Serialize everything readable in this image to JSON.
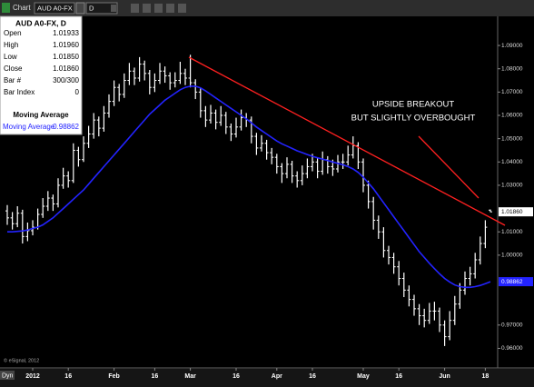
{
  "toolbar": {
    "tab": "Chart",
    "symbol": "AUD A0-FX",
    "interval": "D"
  },
  "chart_data": {
    "type": "ohlc",
    "title": "AUD A0-FX, D",
    "bar_color": "#ffffff",
    "ohlc": [
      [
        1.019,
        1.0215,
        1.013,
        1.016
      ],
      [
        1.016,
        1.0185,
        1.011,
        1.0135
      ],
      [
        1.0135,
        1.021,
        1.012,
        1.018
      ],
      [
        1.018,
        1.0195,
        1.005,
        1.008
      ],
      [
        1.008,
        1.014,
        1.006,
        1.0105
      ],
      [
        1.0105,
        1.015,
        1.0085,
        1.012
      ],
      [
        1.012,
        1.02,
        1.011,
        1.0175
      ],
      [
        1.0175,
        1.0245,
        1.016,
        1.021
      ],
      [
        1.021,
        1.0275,
        1.019,
        1.0245
      ],
      [
        1.0245,
        1.026,
        1.019,
        1.022
      ],
      [
        1.022,
        1.033,
        1.0205,
        1.03
      ],
      [
        1.03,
        1.0375,
        1.0285,
        1.034
      ],
      [
        1.034,
        1.036,
        1.029,
        1.032
      ],
      [
        1.032,
        1.048,
        1.031,
        1.045
      ],
      [
        1.045,
        1.0465,
        1.038,
        1.041
      ],
      [
        1.041,
        1.051,
        1.04,
        1.048
      ],
      [
        1.048,
        1.0555,
        1.046,
        1.052
      ],
      [
        1.052,
        1.061,
        1.05,
        1.058
      ],
      [
        1.058,
        1.0595,
        1.051,
        1.0545
      ],
      [
        1.0545,
        1.064,
        1.053,
        1.061
      ],
      [
        1.061,
        1.069,
        1.059,
        1.066
      ],
      [
        1.066,
        1.075,
        1.064,
        1.072
      ],
      [
        1.072,
        1.0735,
        1.066,
        1.069
      ],
      [
        1.069,
        1.078,
        1.0675,
        1.075
      ],
      [
        1.075,
        1.0825,
        1.073,
        1.079
      ],
      [
        1.079,
        1.0805,
        1.073,
        1.076
      ],
      [
        1.076,
        1.085,
        1.0745,
        1.082
      ],
      [
        1.082,
        1.0835,
        1.075,
        1.078
      ],
      [
        1.078,
        1.0795,
        1.069,
        1.072
      ],
      [
        1.072,
        1.078,
        1.07,
        1.075
      ],
      [
        1.075,
        1.0825,
        1.0735,
        1.079
      ],
      [
        1.079,
        1.081,
        1.074,
        1.077
      ],
      [
        1.077,
        1.0785,
        1.071,
        1.074
      ],
      [
        1.074,
        1.0785,
        1.072,
        1.075
      ],
      [
        1.075,
        1.083,
        1.0735,
        1.078
      ],
      [
        1.078,
        1.08,
        1.073,
        1.076
      ],
      [
        1.076,
        1.086,
        1.072,
        1.074
      ],
      [
        1.074,
        1.0755,
        1.067,
        1.07
      ],
      [
        1.07,
        1.0715,
        1.059,
        1.062
      ],
      [
        1.062,
        1.064,
        1.055,
        1.058
      ],
      [
        1.058,
        1.0645,
        1.0565,
        1.061
      ],
      [
        1.061,
        1.0625,
        1.054,
        1.057
      ],
      [
        1.057,
        1.064,
        1.0555,
        1.06
      ],
      [
        1.06,
        1.0615,
        1.052,
        1.055
      ],
      [
        1.055,
        1.0565,
        1.049,
        1.052
      ],
      [
        1.052,
        1.059,
        1.0505,
        1.055
      ],
      [
        1.055,
        1.0625,
        1.0535,
        1.059
      ],
      [
        1.059,
        1.061,
        1.055,
        1.058
      ],
      [
        1.058,
        1.0595,
        1.048,
        1.051
      ],
      [
        1.051,
        1.0525,
        1.043,
        1.046
      ],
      [
        1.046,
        1.0515,
        1.0445,
        1.048
      ],
      [
        1.048,
        1.0495,
        1.041,
        1.044
      ],
      [
        1.044,
        1.046,
        1.039,
        1.042
      ],
      [
        1.042,
        1.0435,
        1.035,
        1.038
      ],
      [
        1.038,
        1.0395,
        1.031,
        1.035
      ],
      [
        1.035,
        1.042,
        1.033,
        1.039
      ],
      [
        1.039,
        1.0405,
        1.031,
        1.034
      ],
      [
        1.034,
        1.036,
        1.029,
        1.032
      ],
      [
        1.032,
        1.0385,
        1.03,
        1.035
      ],
      [
        1.035,
        1.0415,
        1.033,
        1.038
      ],
      [
        1.038,
        1.0435,
        1.036,
        1.04
      ],
      [
        1.04,
        1.0415,
        1.033,
        1.036
      ],
      [
        1.036,
        1.0445,
        1.0345,
        1.041
      ],
      [
        1.041,
        1.0425,
        1.035,
        1.038
      ],
      [
        1.038,
        1.041,
        1.034,
        1.037
      ],
      [
        1.037,
        1.043,
        1.0355,
        1.04
      ],
      [
        1.04,
        1.0435,
        1.037,
        1.04
      ],
      [
        1.04,
        1.047,
        1.0385,
        1.043
      ],
      [
        1.043,
        1.051,
        1.0415,
        1.047
      ],
      [
        1.047,
        1.0485,
        1.037,
        1.04
      ],
      [
        1.04,
        1.0415,
        1.027,
        1.03
      ],
      [
        1.03,
        1.032,
        1.02,
        1.023
      ],
      [
        1.023,
        1.025,
        1.011,
        1.015
      ],
      [
        1.015,
        1.017,
        1.007,
        1.01
      ],
      [
        1.01,
        1.012,
        0.999,
        1.002
      ],
      [
        1.002,
        1.004,
        0.996,
        0.999
      ],
      [
        0.999,
        1.001,
        0.992,
        0.995
      ],
      [
        0.995,
        0.9975,
        0.987,
        0.99
      ],
      [
        0.99,
        0.9925,
        0.982,
        0.985
      ],
      [
        0.985,
        0.987,
        0.978,
        0.981
      ],
      [
        0.981,
        0.983,
        0.974,
        0.977
      ],
      [
        0.977,
        0.979,
        0.97,
        0.974
      ],
      [
        0.974,
        0.977,
        0.969,
        0.972
      ],
      [
        0.972,
        0.9795,
        0.9705,
        0.976
      ],
      [
        0.976,
        0.98,
        0.972,
        0.976
      ],
      [
        0.976,
        0.9775,
        0.967,
        0.97
      ],
      [
        0.97,
        0.972,
        0.961,
        0.965
      ],
      [
        0.965,
        0.976,
        0.9635,
        0.972
      ],
      [
        0.972,
        0.9825,
        0.97,
        0.979
      ],
      [
        0.979,
        0.988,
        0.977,
        0.985
      ],
      [
        0.985,
        0.993,
        0.983,
        0.99
      ],
      [
        0.99,
        0.995,
        0.987,
        0.992
      ],
      [
        0.992,
        1.001,
        0.99,
        0.998
      ],
      [
        0.998,
        1.008,
        0.996,
        1.005
      ],
      [
        1.005,
        1.015,
        1.003,
        1.012
      ],
      [
        1.01933,
        1.0196,
        1.0185,
        1.0186
      ]
    ],
    "series": [
      {
        "name": "Moving Average",
        "color": "#2323ff",
        "values": [
          1.01,
          1.01,
          1.0102,
          1.0104,
          1.0108,
          1.0115,
          1.012,
          1.013,
          1.0145,
          1.016,
          1.018,
          1.02,
          1.022,
          1.024,
          1.026,
          1.028,
          1.0305,
          1.033,
          1.0355,
          1.038,
          1.0405,
          1.043,
          1.0455,
          1.048,
          1.0505,
          1.053,
          1.0555,
          1.058,
          1.0605,
          1.0625,
          1.0645,
          1.0665,
          1.068,
          1.0695,
          1.071,
          1.072,
          1.0725,
          1.0725,
          1.0718,
          1.0705,
          1.069,
          1.0675,
          1.066,
          1.0645,
          1.063,
          1.0615,
          1.06,
          1.0585,
          1.0568,
          1.055,
          1.0535,
          1.052,
          1.0505,
          1.049,
          1.0478,
          1.0468,
          1.0458,
          1.0448,
          1.044,
          1.0432,
          1.0424,
          1.0418,
          1.0412,
          1.0406,
          1.04,
          1.0394,
          1.0388,
          1.038,
          1.037,
          1.0355,
          1.0335,
          1.031,
          1.0285,
          1.0255,
          1.0225,
          1.0195,
          1.0165,
          1.0135,
          1.0105,
          1.0075,
          1.0045,
          1.0015,
          0.999,
          0.9965,
          0.9942,
          0.992,
          0.99,
          0.9885,
          0.9872,
          0.9865,
          0.9862,
          0.9862,
          0.9865,
          0.987,
          0.9878,
          0.98862
        ]
      }
    ],
    "xlim": [
      -1.43,
      96.43
    ],
    "xticks": [
      {
        "value": 5,
        "label": "2012"
      },
      {
        "value": 12,
        "label": "16"
      },
      {
        "value": 21,
        "label": "Feb"
      },
      {
        "value": 29,
        "label": "16"
      },
      {
        "value": 36,
        "label": "Mar"
      },
      {
        "value": 45,
        "label": "16"
      },
      {
        "value": 53,
        "label": "Apr"
      },
      {
        "value": 60,
        "label": "16"
      },
      {
        "value": 70,
        "label": "May"
      },
      {
        "value": 77,
        "label": "16"
      },
      {
        "value": 86,
        "label": "Jun"
      },
      {
        "value": 94,
        "label": "18"
      }
    ],
    "ylim": [
      0.9516,
      1.1025
    ],
    "yticks": [
      {
        "value": 1.09,
        "label": "1.09000"
      },
      {
        "value": 1.08,
        "label": "1.08000"
      },
      {
        "value": 1.07,
        "label": "1.07000"
      },
      {
        "value": 1.06,
        "label": "1.06000"
      },
      {
        "value": 1.05,
        "label": "1.05000"
      },
      {
        "value": 1.04,
        "label": "1.04000"
      },
      {
        "value": 1.03,
        "label": "1.03000"
      },
      {
        "value": 1.01,
        "label": "1.01000"
      },
      {
        "value": 1.0,
        "label": "1.00000"
      },
      {
        "value": 0.97,
        "label": "0.97000"
      },
      {
        "value": 0.96,
        "label": "0.96000"
      }
    ],
    "last_price_label": "1.01860",
    "ma_value_label": "0.98862",
    "annotation": [
      "UPSIDE BREAKOUT",
      "BUT SLIGHTLY OVERBOUGHT"
    ],
    "info_panel": {
      "rows": [
        [
          "Open",
          "1.01933"
        ],
        [
          "High",
          "1.01960"
        ],
        [
          "Low",
          "1.01850"
        ],
        [
          "Close",
          "1.01860"
        ],
        [
          "Bar #",
          "300/300"
        ],
        [
          "Bar Index",
          "0"
        ]
      ],
      "section": "Moving Average"
    },
    "credit": "© eSignal, 2012",
    "footer_left": "Dyn"
  }
}
